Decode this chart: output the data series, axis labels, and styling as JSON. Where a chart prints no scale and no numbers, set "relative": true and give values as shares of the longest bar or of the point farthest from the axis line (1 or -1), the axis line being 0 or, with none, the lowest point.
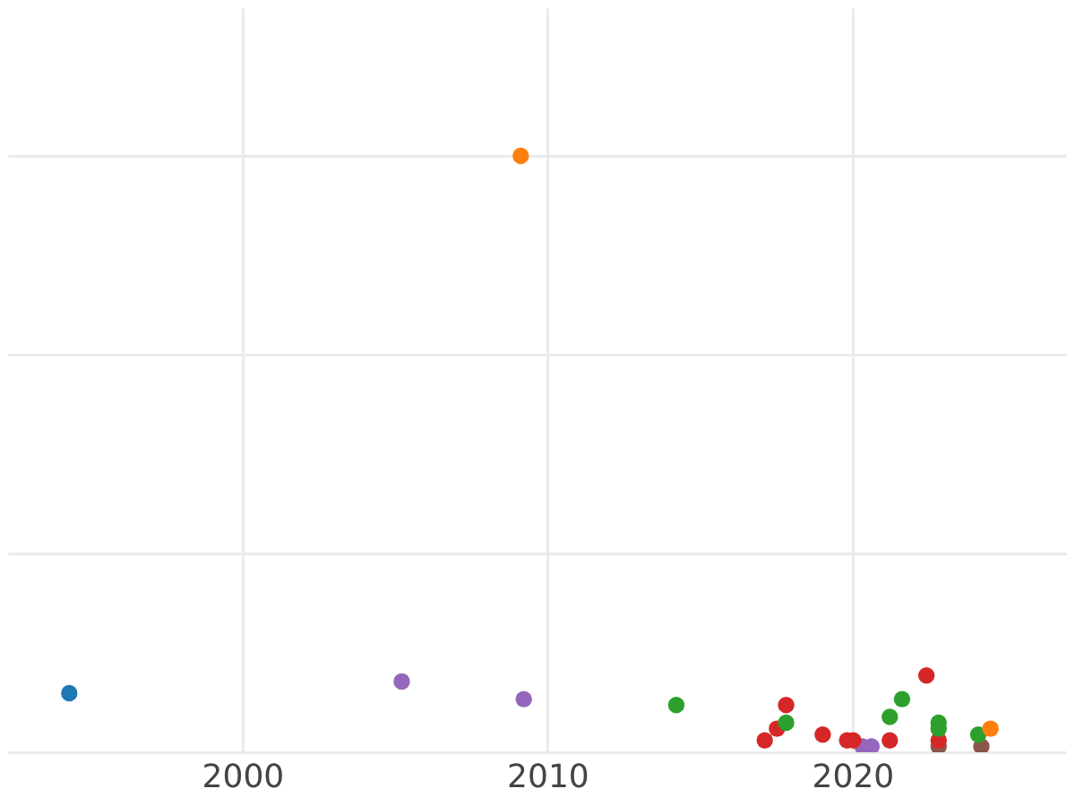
{
  "chart_data": {
    "type": "scatter",
    "relative": true,
    "marker": "circle",
    "grid": true,
    "xlim": [
      1992.3,
      2027
    ],
    "xticks": [
      2000,
      2010,
      2020
    ],
    "series": [
      {
        "color": "#1f77b4",
        "x": [
          1994.3
        ],
        "values": [
          0.09
        ]
      },
      {
        "color": "#ff7f0e",
        "x": [
          2009.1,
          2024.5
        ],
        "values": [
          1.0,
          0.03
        ]
      },
      {
        "color": "#2ca02c",
        "x": [
          2014.2,
          2017.8,
          2021.2,
          2021.6,
          2022.8,
          2022.8,
          2024.1
        ],
        "values": [
          0.07,
          0.04,
          0.05,
          0.08,
          0.04,
          0.03,
          0.02
        ]
      },
      {
        "color": "#d62728",
        "x": [
          2017.1,
          2017.5,
          2017.8,
          2019.0,
          2019.8,
          2020.0,
          2021.2,
          2022.4,
          2022.8
        ],
        "values": [
          0.01,
          0.03,
          0.07,
          0.02,
          0.01,
          0.01,
          0.01,
          0.12,
          0.01
        ]
      },
      {
        "color": "#9467bd",
        "x": [
          2005.2,
          2009.2,
          2020.3,
          2020.6
        ],
        "values": [
          0.11,
          0.08,
          0.0,
          0.0
        ]
      },
      {
        "color": "#8c564b",
        "x": [
          2022.8,
          2024.2
        ],
        "values": [
          0.0,
          0.0
        ]
      }
    ]
  }
}
